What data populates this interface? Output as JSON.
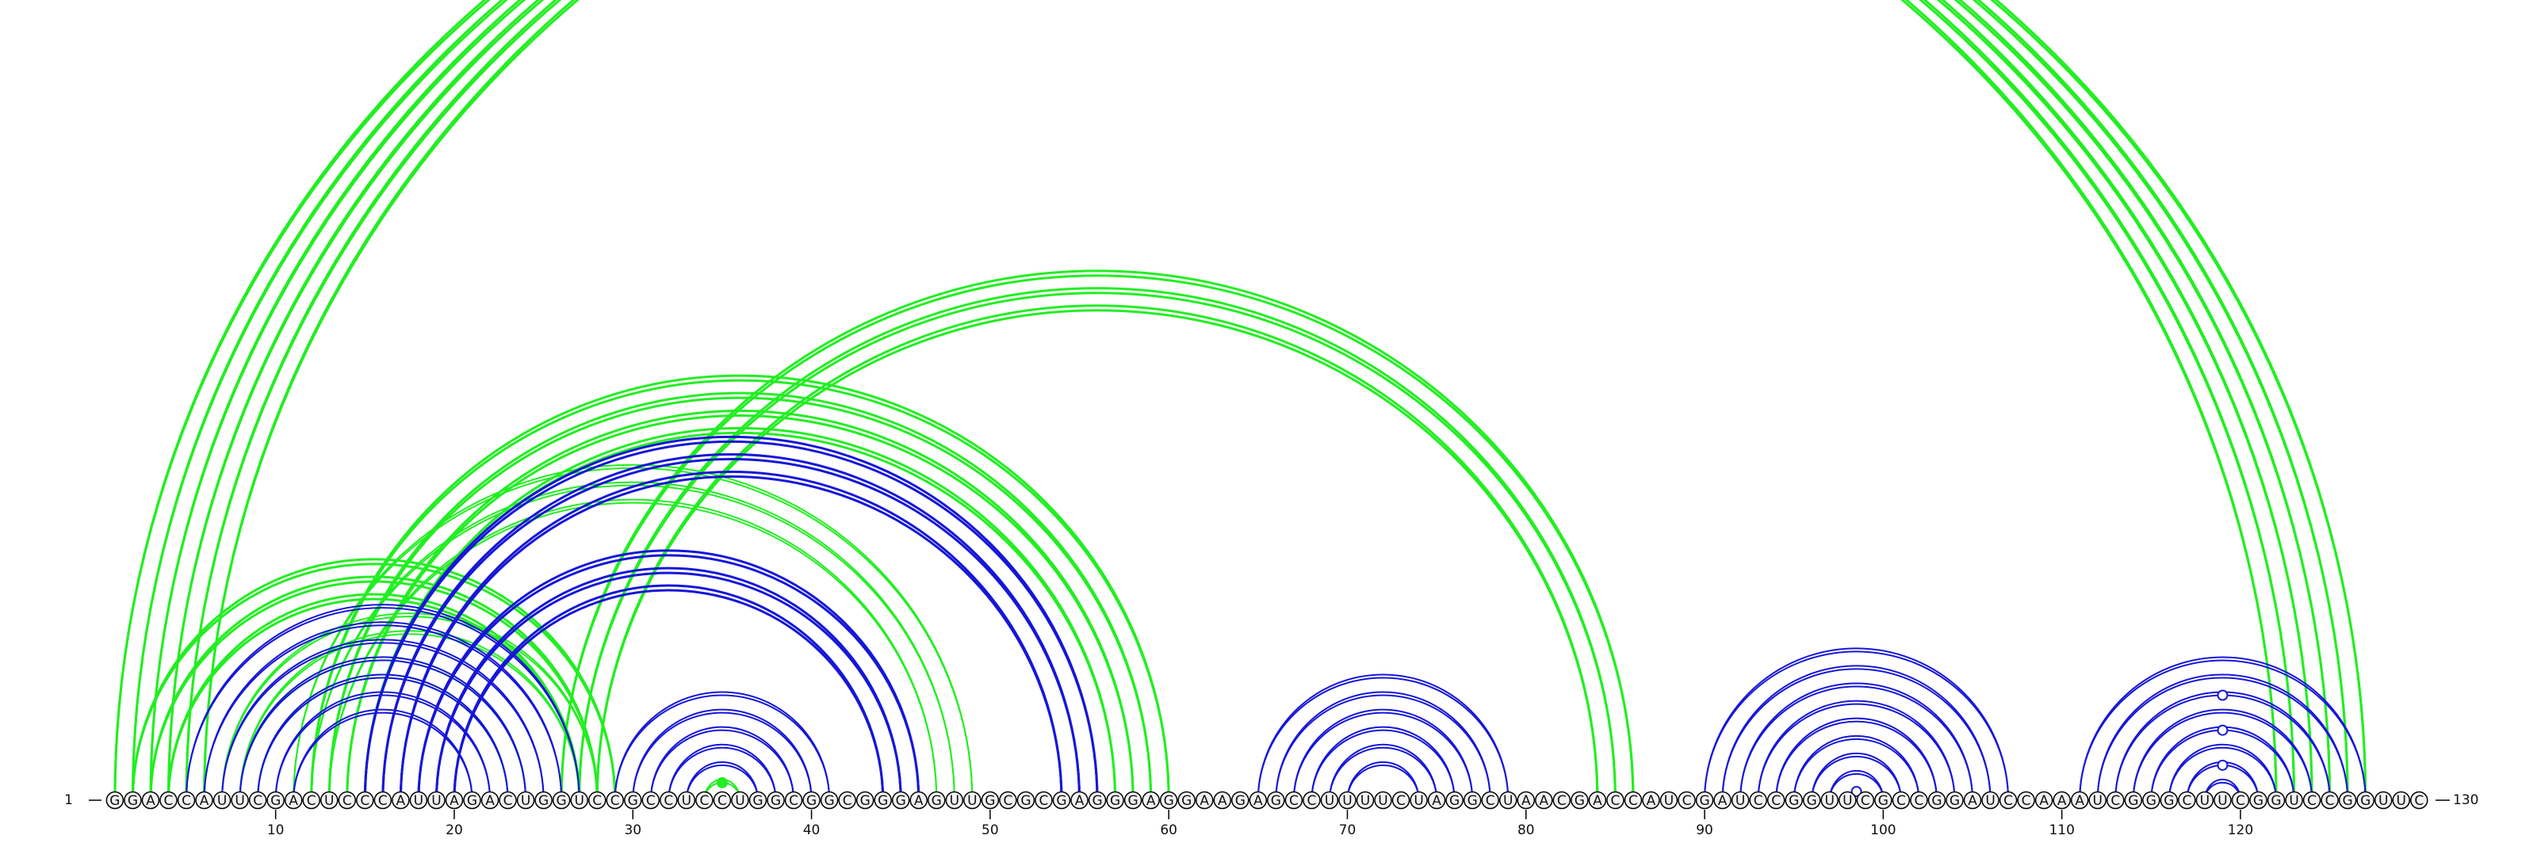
{
  "sequence": "GGACCAUUCGACUCCCAUUAGACUGGUCCGCCUCCUGGCGGCGGGAGUUGCGCGAGGGAGGAAGAGCCUUUUCUAGGCUAACGACCAUCGAUCCGGUUCGCCGGAUCCAAAUCGGGCUUCGGUCCGGUUC",
  "start_label": "1",
  "end_label": "130",
  "ticks": [
    10,
    20,
    30,
    40,
    50,
    60,
    70,
    80,
    90,
    100,
    110,
    120
  ],
  "colors": {
    "green": "#22ee22",
    "blue": "#1616d8"
  },
  "arc_groups": [
    {
      "color": "green",
      "thick": true,
      "pairs": [
        [
          1,
          122
        ],
        [
          2,
          123
        ],
        [
          3,
          124
        ],
        [
          4,
          125
        ],
        [
          5,
          126
        ],
        [
          6,
          127
        ]
      ]
    },
    {
      "color": "green",
      "thick": true,
      "pairs": [
        [
          12,
          60
        ],
        [
          13,
          59
        ],
        [
          14,
          58
        ],
        [
          15,
          57
        ]
      ]
    },
    {
      "color": "green",
      "thick": true,
      "pairs": [
        [
          26,
          86
        ],
        [
          27,
          85
        ],
        [
          28,
          84
        ]
      ]
    },
    {
      "color": "green",
      "thick": false,
      "pairs": [
        [
          11,
          49
        ],
        [
          12,
          48
        ],
        [
          13,
          47
        ]
      ]
    },
    {
      "color": "green",
      "thick": true,
      "pairs": [
        [
          2,
          29
        ],
        [
          3,
          28
        ],
        [
          4,
          27
        ]
      ]
    },
    {
      "color": "green",
      "thick": false,
      "pairs": [
        [
          7,
          28
        ],
        [
          8,
          27
        ]
      ]
    },
    {
      "color": "green",
      "thick": false,
      "pairs": [
        [
          8,
          24
        ],
        [
          9,
          23
        ]
      ]
    },
    {
      "color": "blue",
      "thick": true,
      "pairs": [
        [
          15,
          56
        ],
        [
          16,
          55
        ],
        [
          17,
          54
        ]
      ]
    },
    {
      "color": "blue",
      "thick": true,
      "pairs": [
        [
          18,
          46
        ],
        [
          19,
          45
        ],
        [
          20,
          44
        ]
      ]
    },
    {
      "color": "blue",
      "thick": false,
      "pairs": [
        [
          5,
          27
        ],
        [
          6,
          26
        ],
        [
          7,
          25
        ],
        [
          8,
          24
        ],
        [
          9,
          23
        ],
        [
          10,
          22
        ],
        [
          11,
          21
        ]
      ]
    },
    {
      "color": "blue",
      "thick": false,
      "pairs": [
        [
          29,
          41
        ],
        [
          30,
          40
        ],
        [
          31,
          39
        ],
        [
          32,
          38
        ],
        [
          33,
          37
        ]
      ]
    },
    {
      "color": "green",
      "thick": false,
      "pairs": [
        [
          34,
          36
        ]
      ]
    },
    {
      "color": "blue",
      "thick": false,
      "pairs": [
        [
          65,
          79
        ],
        [
          66,
          78
        ],
        [
          67,
          77
        ],
        [
          68,
          76
        ],
        [
          69,
          75
        ],
        [
          70,
          74
        ]
      ]
    },
    {
      "color": "blue",
      "thick": false,
      "pairs": [
        [
          90,
          107
        ],
        [
          91,
          106
        ],
        [
          92,
          105
        ],
        [
          93,
          104
        ],
        [
          94,
          103
        ],
        [
          95,
          102
        ],
        [
          96,
          101
        ],
        [
          97,
          100
        ]
      ]
    },
    {
      "color": "blue",
      "thick": false,
      "pairs": [
        [
          111,
          127
        ],
        [
          112,
          126
        ],
        [
          113,
          125
        ],
        [
          114,
          124
        ],
        [
          115,
          123
        ],
        [
          116,
          122
        ],
        [
          117,
          121
        ],
        [
          118,
          120
        ]
      ]
    }
  ],
  "markers": [
    {
      "pos": 35,
      "height_pairs": [
        34,
        36
      ],
      "style": "filled",
      "color": "green"
    },
    {
      "pos": 98.5,
      "height_pairs": [
        98,
        99
      ],
      "style": "open",
      "color": "blue"
    },
    {
      "pos": 119,
      "height_pairs": [
        117,
        121
      ],
      "style": "open",
      "color": "blue"
    },
    {
      "pos": 119,
      "height_pairs": [
        115,
        123
      ],
      "style": "open",
      "color": "blue"
    },
    {
      "pos": 119,
      "height_pairs": [
        113,
        125
      ],
      "style": "open",
      "color": "blue"
    }
  ]
}
